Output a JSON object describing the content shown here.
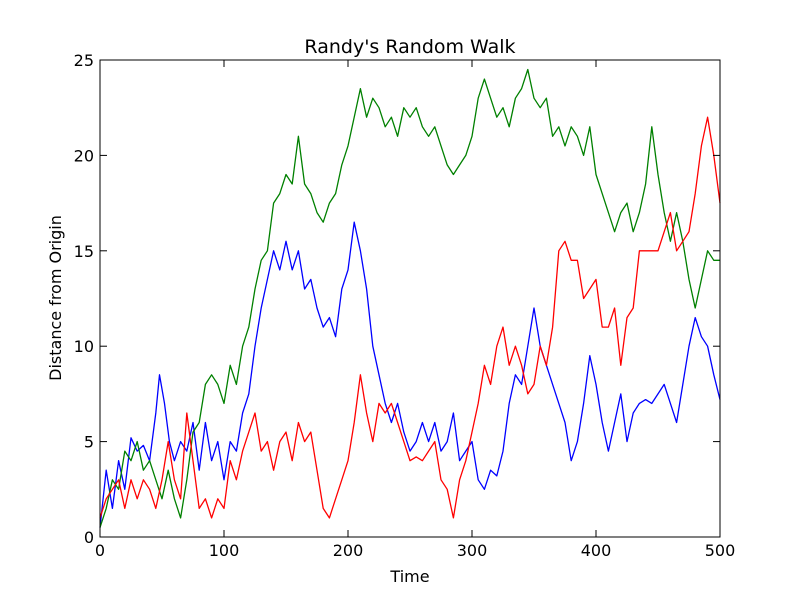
{
  "chart_data": {
    "type": "line",
    "title": "Randy's Random Walk",
    "xlabel": "Time",
    "ylabel": "Distance from Origin",
    "xlim": [
      0,
      500
    ],
    "ylim": [
      0,
      25
    ],
    "xticks": [
      "0",
      "100",
      "200",
      "300",
      "400",
      "500"
    ],
    "yticks": [
      "0",
      "5",
      "10",
      "15",
      "20",
      "25"
    ],
    "grid": false,
    "legend": "none",
    "series": [
      {
        "color": "#0000ff",
        "x": [
          0,
          5,
          10,
          15,
          20,
          25,
          30,
          35,
          40,
          45,
          48,
          52,
          56,
          60,
          65,
          70,
          75,
          80,
          85,
          90,
          95,
          100,
          105,
          110,
          115,
          120,
          125,
          130,
          135,
          140,
          145,
          150,
          155,
          160,
          165,
          170,
          175,
          180,
          185,
          190,
          195,
          200,
          205,
          210,
          215,
          220,
          225,
          230,
          235,
          240,
          245,
          250,
          255,
          260,
          265,
          270,
          275,
          280,
          285,
          290,
          295,
          300,
          305,
          310,
          315,
          320,
          325,
          330,
          335,
          340,
          345,
          350,
          355,
          360,
          365,
          370,
          375,
          380,
          385,
          390,
          395,
          400,
          405,
          410,
          415,
          420,
          425,
          430,
          435,
          440,
          445,
          450,
          455,
          460,
          465,
          470,
          475,
          480,
          485,
          490,
          495,
          500
        ],
        "y": [
          0.5,
          3.5,
          1.5,
          4,
          2.5,
          5.2,
          4.5,
          4.8,
          4,
          6.5,
          8.5,
          7,
          5,
          4,
          5,
          4.5,
          6,
          3.5,
          6,
          4,
          5,
          3,
          5,
          4.5,
          6.5,
          7.5,
          10,
          12,
          13.5,
          15,
          14,
          15.5,
          14,
          15,
          13,
          13.5,
          12,
          11,
          11.5,
          10.5,
          13,
          14,
          16.5,
          15,
          13,
          10,
          8.5,
          7,
          6,
          7,
          5.5,
          4.5,
          5,
          6,
          5,
          6,
          4.5,
          5,
          6.5,
          4,
          4.5,
          5,
          3,
          2.5,
          3.5,
          3.2,
          4.5,
          7,
          8.5,
          8,
          10,
          12,
          10,
          9,
          8,
          7,
          6,
          4,
          5,
          7,
          9.5,
          8,
          6,
          4.5,
          6,
          7.5,
          5,
          6.5,
          7,
          7.2,
          7,
          7.5,
          8,
          7,
          6,
          8,
          10,
          11.5,
          10.5,
          10,
          8.5,
          7.2
        ]
      },
      {
        "color": "#008000",
        "x": [
          0,
          5,
          10,
          15,
          20,
          25,
          30,
          35,
          40,
          45,
          50,
          55,
          60,
          65,
          70,
          75,
          80,
          85,
          90,
          95,
          100,
          105,
          110,
          115,
          120,
          125,
          130,
          135,
          140,
          145,
          150,
          155,
          160,
          165,
          170,
          175,
          180,
          185,
          190,
          195,
          200,
          205,
          210,
          215,
          220,
          225,
          230,
          235,
          240,
          245,
          250,
          255,
          260,
          265,
          270,
          275,
          280,
          285,
          290,
          295,
          300,
          305,
          310,
          315,
          320,
          325,
          330,
          335,
          340,
          345,
          350,
          355,
          360,
          365,
          370,
          375,
          380,
          385,
          390,
          395,
          400,
          405,
          410,
          415,
          420,
          425,
          430,
          435,
          440,
          445,
          450,
          455,
          460,
          465,
          470,
          475,
          480,
          485,
          490,
          495,
          500
        ],
        "y": [
          0.5,
          1.5,
          3,
          2.5,
          4.5,
          4,
          5,
          3.5,
          4,
          3,
          2,
          3.5,
          2,
          1,
          3,
          5.5,
          6,
          8,
          8.5,
          8,
          7,
          9,
          8,
          10,
          11,
          13,
          14.5,
          15,
          17.5,
          18,
          19,
          18.5,
          21,
          18.5,
          18,
          17,
          16.5,
          17.5,
          18,
          19.5,
          20.5,
          22,
          23.5,
          22,
          23,
          22.5,
          21.5,
          22,
          21,
          22.5,
          22,
          22.5,
          21.5,
          21,
          21.5,
          20.5,
          19.5,
          19,
          19.5,
          20,
          21,
          23,
          24,
          23,
          22,
          22.5,
          21.5,
          23,
          23.5,
          24.5,
          23,
          22.5,
          23,
          21,
          21.5,
          20.5,
          21.5,
          21,
          20,
          21.5,
          19,
          18,
          17,
          16,
          17,
          17.5,
          16,
          17,
          18.5,
          21.5,
          19,
          17,
          15.5,
          17,
          15.5,
          13.5,
          12,
          13.5,
          15,
          14.5,
          14.5
        ]
      },
      {
        "color": "#ff0000",
        "x": [
          0,
          5,
          10,
          15,
          20,
          25,
          30,
          35,
          40,
          45,
          50,
          55,
          60,
          65,
          70,
          75,
          80,
          85,
          90,
          95,
          100,
          105,
          110,
          115,
          120,
          125,
          130,
          135,
          140,
          145,
          150,
          155,
          160,
          165,
          170,
          175,
          180,
          185,
          190,
          195,
          200,
          205,
          210,
          215,
          220,
          225,
          230,
          235,
          240,
          245,
          250,
          255,
          260,
          265,
          270,
          275,
          280,
          285,
          290,
          295,
          300,
          305,
          310,
          315,
          320,
          325,
          330,
          335,
          340,
          345,
          350,
          355,
          360,
          365,
          370,
          375,
          380,
          385,
          390,
          395,
          400,
          405,
          410,
          415,
          420,
          425,
          430,
          435,
          440,
          445,
          450,
          455,
          460,
          465,
          470,
          475,
          480,
          485,
          490,
          495,
          500
        ],
        "y": [
          1,
          2,
          2.5,
          3,
          1.5,
          3,
          2,
          3,
          2.5,
          1.5,
          3,
          5,
          3,
          2,
          6.5,
          4,
          1.5,
          2,
          1,
          2,
          1.5,
          4,
          3,
          4.5,
          5.5,
          6.5,
          4.5,
          5,
          3.5,
          5,
          5.5,
          4,
          6,
          5,
          5.5,
          3.5,
          1.5,
          1,
          2,
          3,
          4,
          6,
          8.5,
          6.5,
          5,
          7,
          6.5,
          7,
          6,
          5,
          4,
          4.2,
          4,
          4.5,
          5,
          3,
          2.5,
          1,
          3,
          4,
          5.5,
          7,
          9,
          8,
          10,
          11,
          9,
          10,
          9,
          7.5,
          8,
          10,
          9,
          11,
          15,
          15.5,
          14.5,
          14.5,
          12.5,
          13,
          13.5,
          11,
          11,
          12,
          9,
          11.5,
          12,
          15,
          15,
          15,
          15,
          16,
          17,
          15,
          15.5,
          16,
          18,
          20.5,
          22,
          20,
          17.5
        ]
      }
    ]
  }
}
